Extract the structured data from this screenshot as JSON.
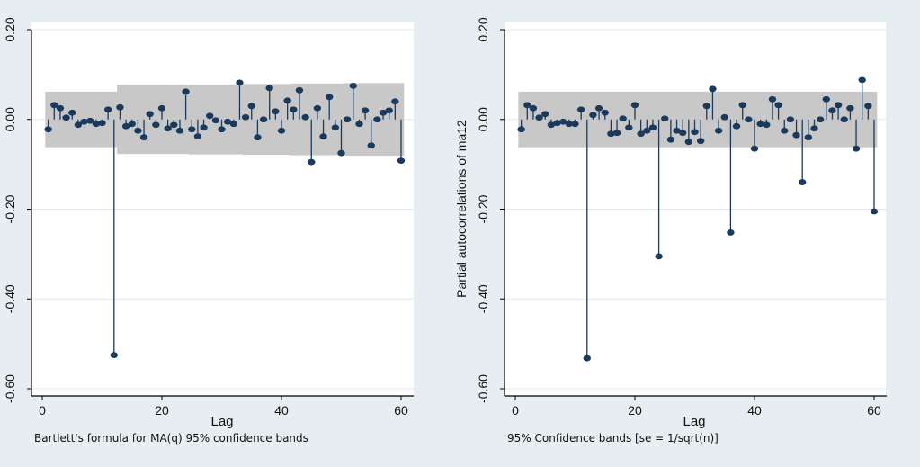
{
  "colors": {
    "background": "#e6eef1",
    "plot_area": "#ffffff",
    "band": "#c8c8c8",
    "marker": "#1a3a5c",
    "axis": "#000000"
  },
  "chart_data": [
    {
      "type": "stem",
      "title": "",
      "xlabel": "Lag",
      "ylabel": "",
      "footnote": "Bartlett's formula for MA(q) 95% confidence bands",
      "xlim": [
        0,
        61
      ],
      "ylim": [
        -0.6,
        0.2
      ],
      "xticks": [
        0,
        20,
        40,
        60
      ],
      "xtick_labels": [
        "0",
        "20",
        "40",
        "60"
      ],
      "yticks": [
        -0.6,
        -0.4,
        -0.2,
        0.0,
        0.2
      ],
      "ytick_labels": [
        "-0.60",
        "-0.40",
        "-0.20",
        "0.00",
        "0.20"
      ],
      "grid": true,
      "lags": [
        1,
        2,
        3,
        4,
        5,
        6,
        7,
        8,
        9,
        10,
        11,
        12,
        13,
        14,
        15,
        16,
        17,
        18,
        19,
        20,
        21,
        22,
        23,
        24,
        25,
        26,
        27,
        28,
        29,
        30,
        31,
        32,
        33,
        34,
        35,
        36,
        37,
        38,
        39,
        40,
        41,
        42,
        43,
        44,
        45,
        46,
        47,
        48,
        49,
        50,
        51,
        52,
        53,
        54,
        55,
        56,
        57,
        58,
        59,
        60
      ],
      "values": [
        -0.022,
        0.032,
        0.025,
        0.004,
        0.015,
        -0.012,
        -0.005,
        -0.003,
        -0.01,
        -0.008,
        0.022,
        -0.525,
        0.027,
        -0.015,
        -0.01,
        -0.025,
        -0.04,
        0.012,
        -0.012,
        0.025,
        -0.02,
        -0.012,
        -0.025,
        0.062,
        -0.022,
        -0.038,
        -0.018,
        0.008,
        -0.002,
        -0.022,
        -0.005,
        -0.01,
        0.082,
        0.005,
        0.03,
        -0.04,
        0.0,
        0.07,
        0.018,
        -0.025,
        0.042,
        0.022,
        0.065,
        0.005,
        -0.095,
        0.025,
        -0.038,
        0.05,
        -0.018,
        -0.075,
        0.0,
        0.075,
        -0.01,
        0.02,
        -0.058,
        0.0,
        0.015,
        0.02,
        0.04,
        -0.092
      ],
      "band_upper": [
        0.062,
        0.062,
        0.062,
        0.062,
        0.062,
        0.062,
        0.062,
        0.062,
        0.062,
        0.062,
        0.062,
        0.062,
        0.077,
        0.077,
        0.077,
        0.077,
        0.077,
        0.077,
        0.077,
        0.077,
        0.077,
        0.077,
        0.077,
        0.077,
        0.078,
        0.078,
        0.078,
        0.078,
        0.078,
        0.078,
        0.078,
        0.078,
        0.078,
        0.079,
        0.079,
        0.079,
        0.079,
        0.079,
        0.079,
        0.079,
        0.079,
        0.08,
        0.08,
        0.08,
        0.08,
        0.08,
        0.08,
        0.08,
        0.08,
        0.08,
        0.081,
        0.081,
        0.081,
        0.081,
        0.081,
        0.081,
        0.081,
        0.081,
        0.081,
        0.081
      ],
      "band_lower": [
        -0.062,
        -0.062,
        -0.062,
        -0.062,
        -0.062,
        -0.062,
        -0.062,
        -0.062,
        -0.062,
        -0.062,
        -0.062,
        -0.062,
        -0.077,
        -0.077,
        -0.077,
        -0.077,
        -0.077,
        -0.077,
        -0.077,
        -0.077,
        -0.077,
        -0.077,
        -0.077,
        -0.077,
        -0.078,
        -0.078,
        -0.078,
        -0.078,
        -0.078,
        -0.078,
        -0.078,
        -0.078,
        -0.078,
        -0.079,
        -0.079,
        -0.079,
        -0.079,
        -0.079,
        -0.079,
        -0.079,
        -0.079,
        -0.08,
        -0.08,
        -0.08,
        -0.08,
        -0.08,
        -0.08,
        -0.08,
        -0.08,
        -0.08,
        -0.081,
        -0.081,
        -0.081,
        -0.081,
        -0.081,
        -0.081,
        -0.081,
        -0.081,
        -0.081,
        -0.081
      ]
    },
    {
      "type": "stem",
      "title": "",
      "xlabel": "Lag",
      "ylabel": "Partial autocorrelations of ma12",
      "footnote": "95% Confidence bands [se = 1/sqrt(n)]",
      "xlim": [
        0,
        61
      ],
      "ylim": [
        -0.6,
        0.2
      ],
      "xticks": [
        0,
        20,
        40,
        60
      ],
      "xtick_labels": [
        "0",
        "20",
        "40",
        "60"
      ],
      "yticks": [
        -0.6,
        -0.4,
        -0.2,
        0.0,
        0.2
      ],
      "ytick_labels": [
        "-0.60",
        "-0.40",
        "-0.20",
        "0.00",
        "0.20"
      ],
      "grid": true,
      "lags": [
        1,
        2,
        3,
        4,
        5,
        6,
        7,
        8,
        9,
        10,
        11,
        12,
        13,
        14,
        15,
        16,
        17,
        18,
        19,
        20,
        21,
        22,
        23,
        24,
        25,
        26,
        27,
        28,
        29,
        30,
        31,
        32,
        33,
        34,
        35,
        36,
        37,
        38,
        39,
        40,
        41,
        42,
        43,
        44,
        45,
        46,
        47,
        48,
        49,
        50,
        51,
        52,
        53,
        54,
        55,
        56,
        57,
        58,
        59,
        60
      ],
      "values": [
        -0.022,
        0.032,
        0.025,
        0.004,
        0.012,
        -0.012,
        -0.008,
        -0.005,
        -0.01,
        -0.01,
        0.022,
        -0.532,
        0.01,
        0.025,
        0.015,
        -0.032,
        -0.03,
        0.002,
        -0.018,
        0.032,
        -0.032,
        -0.025,
        -0.018,
        -0.305,
        0.002,
        -0.045,
        -0.025,
        -0.03,
        -0.05,
        -0.028,
        -0.048,
        0.03,
        0.068,
        -0.025,
        0.005,
        -0.252,
        -0.015,
        0.032,
        0.0,
        -0.065,
        -0.01,
        -0.012,
        0.045,
        0.032,
        -0.025,
        0.0,
        -0.035,
        -0.14,
        -0.04,
        -0.02,
        0.0,
        0.045,
        0.02,
        0.032,
        0.0,
        0.025,
        -0.065,
        0.088,
        0.03,
        -0.205
      ],
      "band_upper": [
        0.062,
        0.062,
        0.062,
        0.062,
        0.062,
        0.062,
        0.062,
        0.062,
        0.062,
        0.062,
        0.062,
        0.062,
        0.062,
        0.062,
        0.062,
        0.062,
        0.062,
        0.062,
        0.062,
        0.062,
        0.062,
        0.062,
        0.062,
        0.062,
        0.062,
        0.062,
        0.062,
        0.062,
        0.062,
        0.062,
        0.062,
        0.062,
        0.062,
        0.062,
        0.062,
        0.062,
        0.062,
        0.062,
        0.062,
        0.062,
        0.062,
        0.062,
        0.062,
        0.062,
        0.062,
        0.062,
        0.062,
        0.062,
        0.062,
        0.062,
        0.062,
        0.062,
        0.062,
        0.062,
        0.062,
        0.062,
        0.062,
        0.062,
        0.062,
        0.062
      ],
      "band_lower": [
        -0.062,
        -0.062,
        -0.062,
        -0.062,
        -0.062,
        -0.062,
        -0.062,
        -0.062,
        -0.062,
        -0.062,
        -0.062,
        -0.062,
        -0.062,
        -0.062,
        -0.062,
        -0.062,
        -0.062,
        -0.062,
        -0.062,
        -0.062,
        -0.062,
        -0.062,
        -0.062,
        -0.062,
        -0.062,
        -0.062,
        -0.062,
        -0.062,
        -0.062,
        -0.062,
        -0.062,
        -0.062,
        -0.062,
        -0.062,
        -0.062,
        -0.062,
        -0.062,
        -0.062,
        -0.062,
        -0.062,
        -0.062,
        -0.062,
        -0.062,
        -0.062,
        -0.062,
        -0.062,
        -0.062,
        -0.062,
        -0.062,
        -0.062,
        -0.062,
        -0.062,
        -0.062,
        -0.062,
        -0.062,
        -0.062,
        -0.062,
        -0.062,
        -0.062,
        -0.062
      ]
    }
  ]
}
